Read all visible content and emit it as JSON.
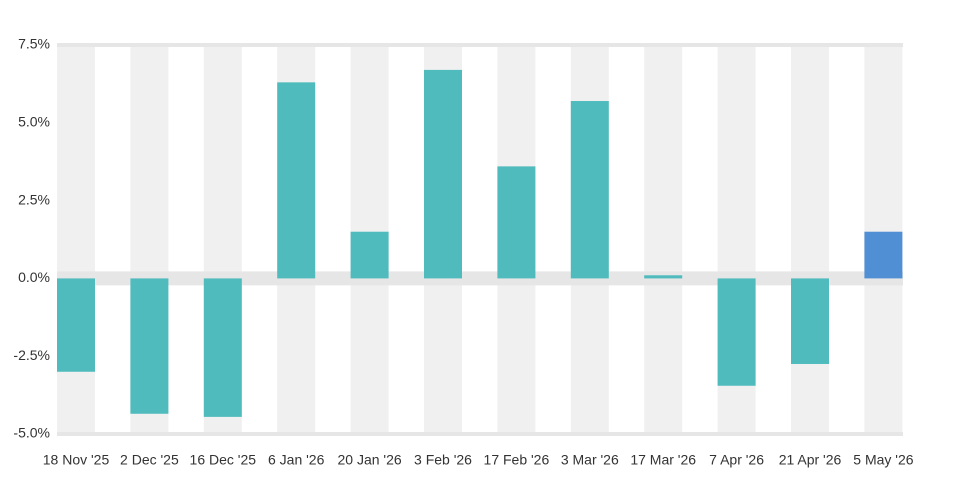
{
  "chart_data": {
    "type": "bar",
    "categories": [
      "18 Nov '25",
      "2 Dec '25",
      "16 Dec '25",
      "6 Jan '26",
      "20 Jan '26",
      "3 Feb '26",
      "17 Feb '26",
      "3 Mar '26",
      "17 Mar '26",
      "7 Apr '26",
      "21 Apr '26",
      "5 May '26"
    ],
    "values": [
      -3.0,
      -4.35,
      -4.45,
      6.3,
      1.5,
      6.7,
      3.6,
      5.7,
      0.1,
      -3.45,
      -2.75,
      1.5
    ],
    "colors": [
      "#4fbbbd",
      "#4fbbbd",
      "#4fbbbd",
      "#4fbbbd",
      "#4fbbbd",
      "#4fbbbd",
      "#4fbbbd",
      "#4fbbbd",
      "#4fbbbd",
      "#4fbbbd",
      "#4fbbbd",
      "#518fd4"
    ],
    "ylim": [
      -5,
      7.5
    ],
    "yticks": [
      {
        "value": -5,
        "label": "-5.0%"
      },
      {
        "value": -2.5,
        "label": "-2.5%"
      },
      {
        "value": 0,
        "label": "0.0%"
      },
      {
        "value": 2.5,
        "label": "2.5%"
      },
      {
        "value": 5,
        "label": "5.0%"
      },
      {
        "value": 7.5,
        "label": "7.5%"
      }
    ],
    "grid": true
  }
}
